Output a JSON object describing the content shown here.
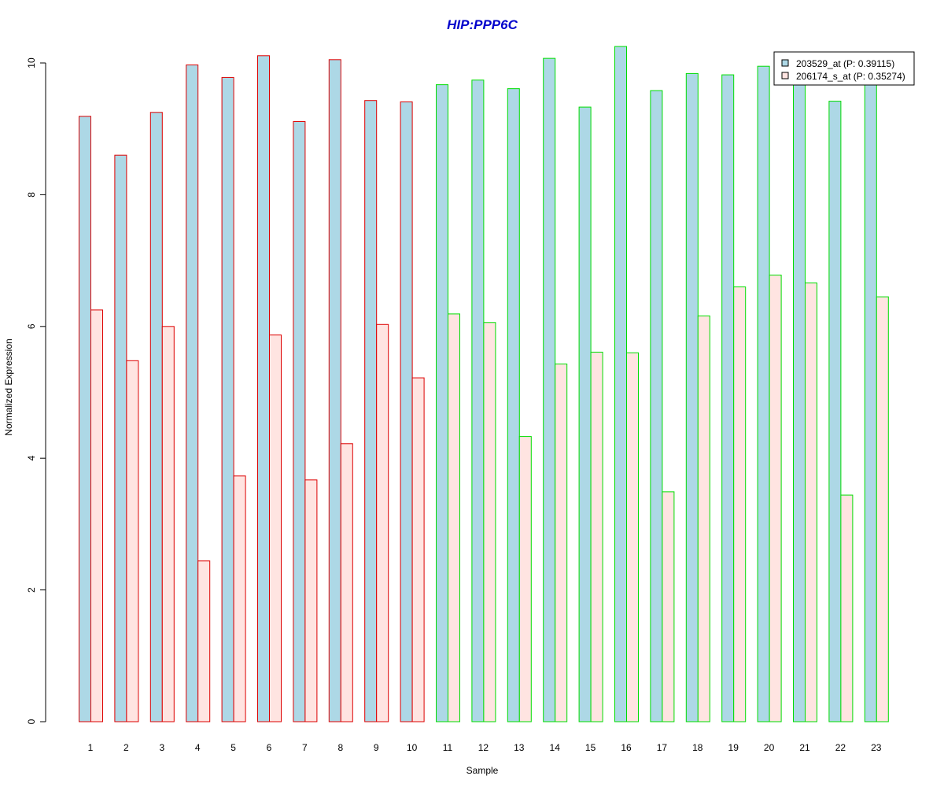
{
  "chart_data": {
    "type": "bar",
    "title": "HIP:PPP6C",
    "xlabel": "Sample",
    "ylabel": "Normalized Expression",
    "categories": [
      "1",
      "2",
      "3",
      "4",
      "5",
      "6",
      "7",
      "8",
      "9",
      "10",
      "11",
      "12",
      "13",
      "14",
      "15",
      "16",
      "17",
      "18",
      "19",
      "20",
      "21",
      "22",
      "23"
    ],
    "series": [
      {
        "name": "203529_at (P: 0.39115)",
        "fill": "#add8e6",
        "values": [
          9.19,
          8.6,
          9.25,
          9.97,
          9.78,
          10.11,
          9.11,
          10.05,
          9.43,
          9.41,
          9.67,
          9.74,
          9.61,
          10.07,
          9.33,
          10.25,
          9.58,
          9.84,
          9.82,
          9.95,
          9.7,
          9.42,
          9.7
        ]
      },
      {
        "name": "206174_s_at (P: 0.35274)",
        "fill": "#ffe4e1",
        "values": [
          6.25,
          5.48,
          6.0,
          2.44,
          3.73,
          5.87,
          3.67,
          4.22,
          6.03,
          5.22,
          6.19,
          6.06,
          4.33,
          5.43,
          5.61,
          5.6,
          3.49,
          6.16,
          6.6,
          6.78,
          6.66,
          3.44,
          6.45
        ]
      }
    ],
    "group_outline_colors": [
      "#dd0000",
      "#dd0000",
      "#dd0000",
      "#dd0000",
      "#dd0000",
      "#dd0000",
      "#dd0000",
      "#dd0000",
      "#dd0000",
      "#dd0000",
      "#00dd00",
      "#00dd00",
      "#00dd00",
      "#00dd00",
      "#00dd00",
      "#00dd00",
      "#00dd00",
      "#00dd00",
      "#00dd00",
      "#00dd00",
      "#00dd00",
      "#00dd00",
      "#00dd00"
    ],
    "title_color": "#0000cc",
    "yticks": [
      0,
      2,
      4,
      6,
      8,
      10
    ],
    "ylim": [
      0,
      10.25
    ],
    "grid": false,
    "legend_position": "top-right"
  }
}
